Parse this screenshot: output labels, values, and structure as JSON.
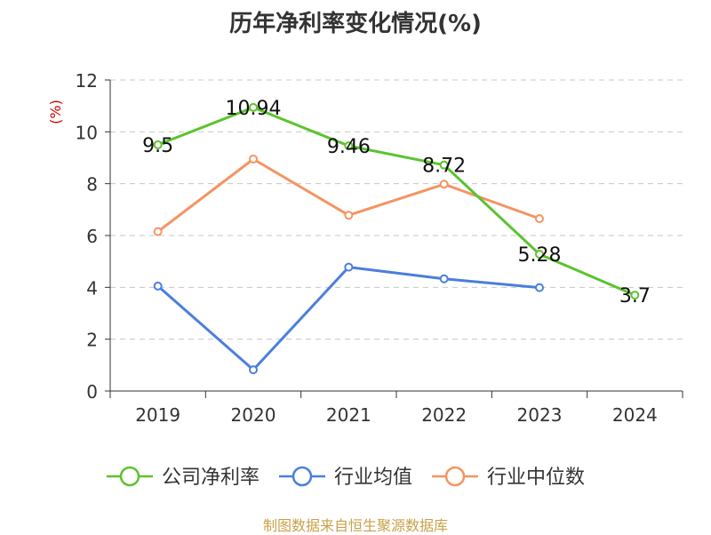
{
  "chart_data": {
    "type": "line",
    "title": "历年净利率变化情况(%)",
    "ylabel": "(%)",
    "xlabel": "",
    "categories": [
      "2019",
      "2020",
      "2021",
      "2022",
      "2023",
      "2024"
    ],
    "ylim": [
      0,
      12
    ],
    "yticks": [
      0,
      2,
      4,
      6,
      8,
      10,
      12
    ],
    "grid": true,
    "legend_position": "bottom",
    "series": [
      {
        "name": "公司净利率",
        "color": "#5cc32f",
        "values": [
          9.5,
          10.94,
          9.46,
          8.72,
          5.28,
          3.7
        ],
        "labels": [
          "9.5",
          "10.94",
          "9.46",
          "8.72",
          "5.28",
          "3.7"
        ]
      },
      {
        "name": "行业均值",
        "color": "#4a7fdc",
        "values": [
          4.05,
          0.82,
          4.78,
          4.33,
          3.99,
          null
        ]
      },
      {
        "name": "行业中位数",
        "color": "#f49461",
        "values": [
          6.15,
          8.95,
          6.78,
          7.98,
          6.65,
          null
        ]
      }
    ],
    "source_note": "制图数据来自恒生聚源数据库"
  }
}
